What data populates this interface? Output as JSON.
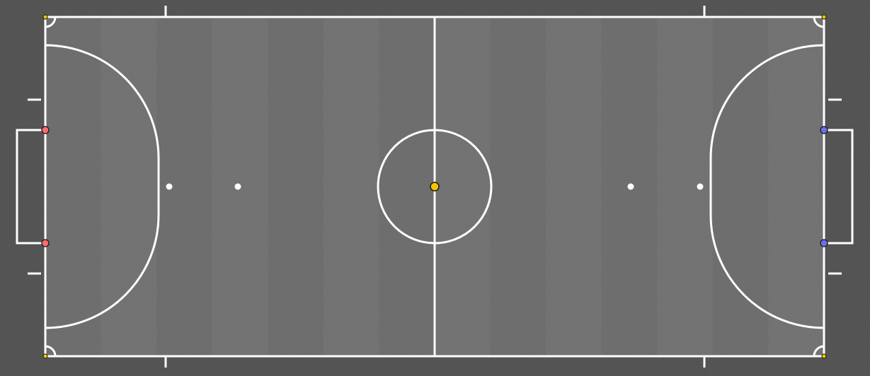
{
  "colors": {
    "background": "#4f4f4f",
    "pitch": "#6a6a6a",
    "stripe": "#737373",
    "line": "#ffffff",
    "ball": "#f5c400",
    "corner_marker": "#f5c400",
    "home_post_marker": "#ff6b6b",
    "away_post_marker": "#6f6fe8",
    "outline": "#1a1a1a"
  },
  "pitch": {
    "stripes": 14,
    "features": [
      "touchlines",
      "goal-lines",
      "halfway-line",
      "centre-circle",
      "centre-spot",
      "penalty-areas",
      "penalty-marks",
      "second-penalty-marks",
      "goals",
      "corner-arcs",
      "substitution-zone-ticks",
      "penalty-distance-ticks"
    ]
  },
  "markers": {
    "ball": {
      "name": "ball",
      "color": "#f5c400"
    },
    "corners": [
      {
        "name": "corner-top-left"
      },
      {
        "name": "corner-top-right"
      },
      {
        "name": "corner-bottom-left"
      },
      {
        "name": "corner-bottom-right"
      }
    ],
    "home_posts": [
      {
        "name": "home-goal-post-top"
      },
      {
        "name": "home-goal-post-bottom"
      }
    ],
    "away_posts": [
      {
        "name": "away-goal-post-top"
      },
      {
        "name": "away-goal-post-bottom"
      }
    ]
  }
}
